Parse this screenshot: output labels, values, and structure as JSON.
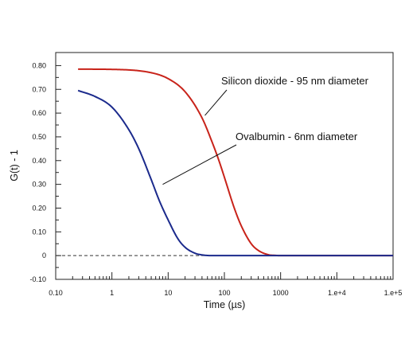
{
  "chart_data": {
    "type": "line",
    "title": "",
    "xlabel": "Time (µs)",
    "ylabel": "G(t) - 1",
    "xscale": "log",
    "xlim": [
      0.1,
      100000
    ],
    "ylim": [
      -0.1,
      0.85
    ],
    "x_ticks": [
      {
        "value": 0.1,
        "label": "0.10"
      },
      {
        "value": 1,
        "label": "1"
      },
      {
        "value": 10,
        "label": "10"
      },
      {
        "value": 100,
        "label": "100"
      },
      {
        "value": 1000,
        "label": "1000"
      },
      {
        "value": 10000,
        "label": "1.e+4"
      },
      {
        "value": 100000,
        "label": "1.e+5"
      }
    ],
    "y_ticks": [
      {
        "value": 0.8,
        "label": "0.80"
      },
      {
        "value": 0.7,
        "label": "0.70"
      },
      {
        "value": 0.6,
        "label": "0.60"
      },
      {
        "value": 0.5,
        "label": "0.50"
      },
      {
        "value": 0.4,
        "label": "0.40"
      },
      {
        "value": 0.3,
        "label": "0.30"
      },
      {
        "value": 0.2,
        "label": "0.20"
      },
      {
        "value": 0.1,
        "label": "0.10"
      },
      {
        "value": 0,
        "label": "0"
      },
      {
        "value": -0.1,
        "label": "-0.10"
      }
    ],
    "baseline": {
      "y": 0,
      "style": "dashed"
    },
    "series": [
      {
        "name": "Silicon dioxide - 95 nm diameter",
        "color": "#c8231a",
        "x": [
          0.25,
          1,
          5,
          10,
          20,
          40,
          60,
          80,
          100,
          150,
          200,
          300,
          400,
          600,
          800,
          1000,
          100000
        ],
        "y": [
          0.785,
          0.784,
          0.77,
          0.745,
          0.69,
          0.58,
          0.48,
          0.4,
          0.33,
          0.2,
          0.125,
          0.05,
          0.022,
          0.004,
          0.001,
          0.0,
          0.0
        ]
      },
      {
        "name": "Ovalbumin - 6nm diameter",
        "color": "#1b2a8c",
        "x": [
          0.25,
          0.5,
          1,
          2,
          3,
          5,
          7,
          10,
          15,
          20,
          30,
          40,
          60,
          100,
          100000
        ],
        "y": [
          0.695,
          0.67,
          0.625,
          0.53,
          0.45,
          0.32,
          0.23,
          0.15,
          0.07,
          0.035,
          0.01,
          0.003,
          0.0,
          0.0,
          0.0
        ]
      }
    ],
    "annotations": [
      {
        "text": "Silicon dioxide - 95 nm diameter",
        "series": 0,
        "point": [
          45,
          0.59
        ]
      },
      {
        "text": "Ovalbumin - 6nm diameter",
        "series": 1,
        "point": [
          8,
          0.3
        ]
      }
    ],
    "grid": false,
    "legend": "none"
  }
}
